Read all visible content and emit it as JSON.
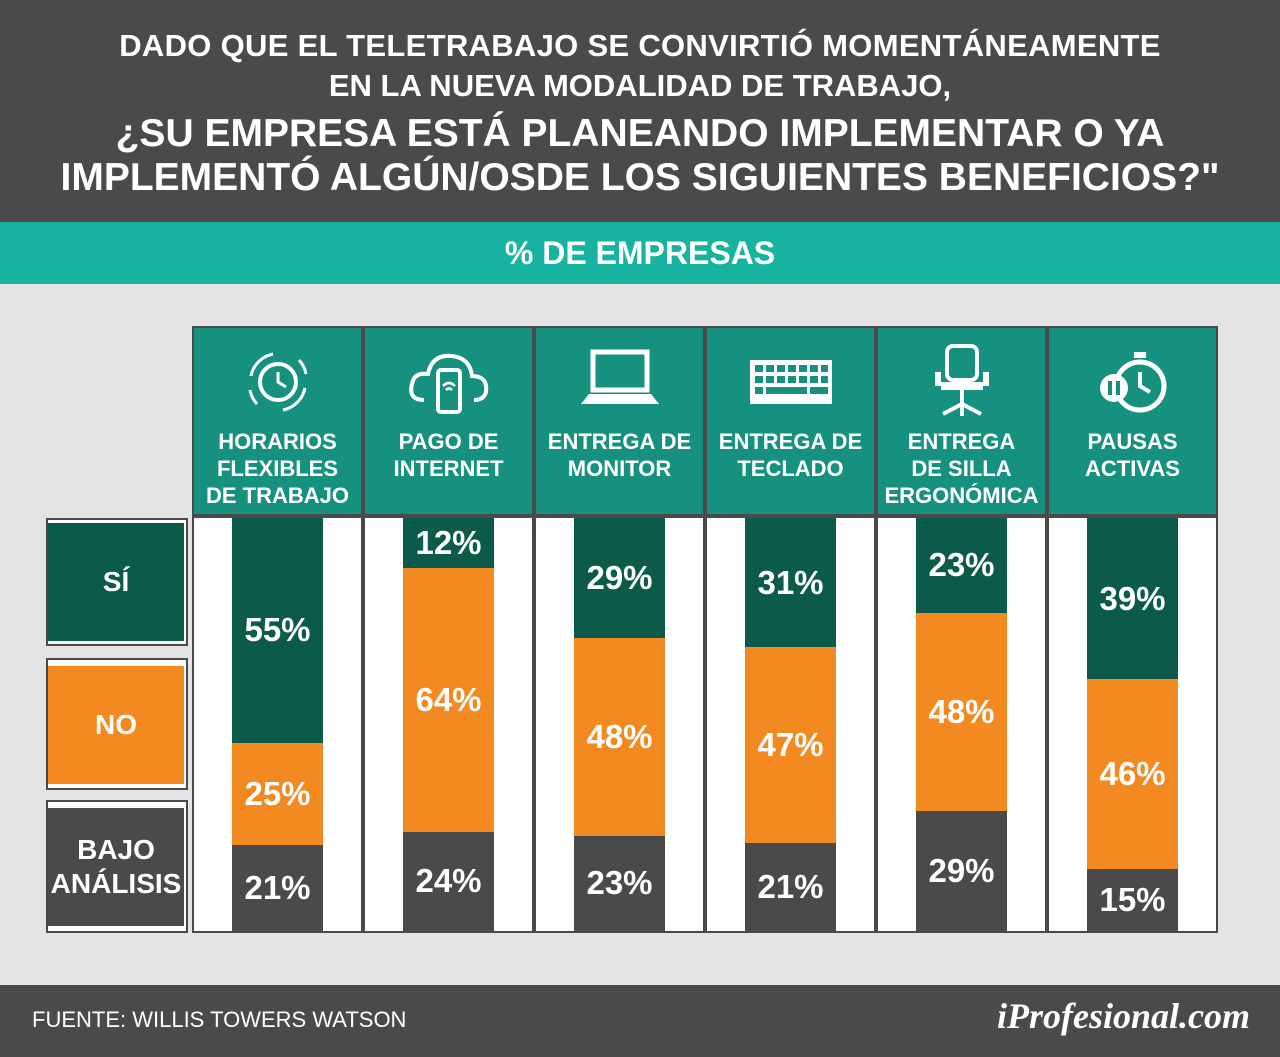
{
  "header": {
    "line1": "DADO QUE EL TELETRABAJO SE CONVIRTIÓ MOMENTÁNEAMENTE",
    "line2": "EN LA NUEVA MODALIDAD DE TRABAJO,",
    "line3": "¿SU EMPRESA ESTÁ PLANEANDO IMPLEMENTAR O YA",
    "line4": "IMPLEMENTÓ ALGÚN/OSDE LOS SIGUIENTES BENEFICIOS?\""
  },
  "subtitle": "% DE EMPRESAS",
  "legend": {
    "si": "SÍ",
    "no": "NO",
    "bajo": "BAJO\nANÁLISIS"
  },
  "colors": {
    "si": "#0c5a4a",
    "no": "#f28a21",
    "bajo": "#4a4a4a",
    "header_bg": "#4a4a4a",
    "teal_bar": "#17b3a0",
    "column_head": "#17917f"
  },
  "chart_data": {
    "type": "bar",
    "stacked": true,
    "categories": [
      "HORARIOS\nFLEXIBLES\nDE TRABAJO",
      "PAGO DE\nINTERNET",
      "ENTREGA DE\nMONITOR",
      "ENTREGA DE\nTECLADO",
      "ENTREGA\nDE SILLA\nERGONÓMICA",
      "PAUSAS\nACTIVAS"
    ],
    "icons": [
      "clock-cycle-icon",
      "cloud-phone-wifi-icon",
      "laptop-icon",
      "keyboard-icon",
      "office-chair-icon",
      "stopwatch-pause-icon"
    ],
    "series": [
      {
        "name": "SÍ",
        "values": [
          55,
          12,
          29,
          31,
          23,
          39
        ],
        "labels": [
          "55%",
          "12%",
          "29%",
          "31%",
          "23%",
          "39%"
        ]
      },
      {
        "name": "NO",
        "values": [
          25,
          64,
          48,
          47,
          48,
          46
        ],
        "labels": [
          "25%",
          "64%",
          "48%",
          "47%",
          "48%",
          "46%"
        ]
      },
      {
        "name": "BAJO ANÁLISIS",
        "values": [
          21,
          24,
          23,
          21,
          29,
          15
        ],
        "labels": [
          "21%",
          "24%",
          "23%",
          "21%",
          "29%",
          "15%"
        ]
      }
    ],
    "ylim": [
      0,
      100
    ]
  },
  "footer": {
    "source": "FUENTE: WILLIS TOWERS WATSON",
    "brand": "iProfesional.com"
  }
}
